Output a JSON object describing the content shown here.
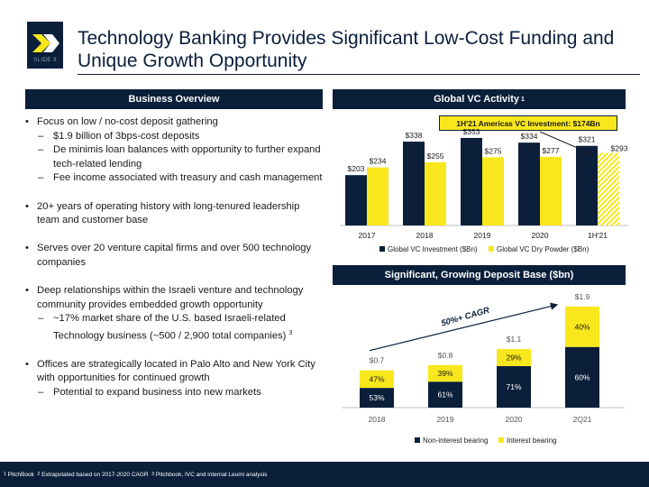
{
  "slide": {
    "number_label": "SLIDE 9",
    "title": "Technology Banking Provides Significant Low-Cost Funding and Unique Growth Opportunity"
  },
  "left": {
    "header": "Business Overview",
    "bullets": [
      {
        "level": 1,
        "text": "Focus on low / no-cost deposit gathering"
      },
      {
        "level": 2,
        "text": "$1.9 billion of 3bps-cost deposits"
      },
      {
        "level": 2,
        "text": "De minimis loan balances with opportunity to further expand tech-related lending"
      },
      {
        "level": 2,
        "text": "Fee income associated with treasury and cash management"
      },
      {
        "level": 0,
        "text": ""
      },
      {
        "level": 1,
        "text": "20+ years of operating history with long-tenured leadership team and customer base"
      },
      {
        "level": 0,
        "text": ""
      },
      {
        "level": 1,
        "text": "Serves over 20 venture capital firms and over 500 technology companies"
      },
      {
        "level": 0,
        "text": ""
      },
      {
        "level": 1,
        "text": "Deep relationships within the Israeli venture and technology community provides embedded growth opportunity"
      },
      {
        "level": 2,
        "text": "~17% market share of the U.S. based Israeli-related Technology business (~500 / 2,900 total companies)",
        "sup": "3"
      },
      {
        "level": 0,
        "text": ""
      },
      {
        "level": 1,
        "text": "Offices are strategically located in Palo Alto and New York City with opportunities for continued growth"
      },
      {
        "level": 2,
        "text": "Potential to expand business into new markets"
      }
    ]
  },
  "vc": {
    "header": "Global VC Activity",
    "header_sup": "1",
    "callout": "1H'21 Americas VC Investment: $174Bn",
    "colors": {
      "navy": "#0b1f3b",
      "yellow": "#f8e71c"
    }
  },
  "deposit": {
    "header": "Significant, Growing Deposit Base ($bn)",
    "cagr_label": "50%+ CAGR"
  },
  "chart_data": [
    {
      "type": "bar",
      "title": "Global VC Activity",
      "categories": [
        "2017",
        "2018",
        "2019",
        "2020",
        "1H'21"
      ],
      "series": [
        {
          "name": "Global VC Investment ($Bn)",
          "values": [
            203,
            338,
            353,
            334,
            321
          ],
          "labels": [
            "$203",
            "$338",
            "$353",
            "$334",
            "$321"
          ]
        },
        {
          "name": "Global VC Dry Powder ($Bn)",
          "values": [
            234,
            255,
            275,
            277,
            293
          ],
          "labels": [
            "$234",
            "$255",
            "$275",
            "$277",
            "$293"
          ],
          "last_label_sup": "2"
        }
      ],
      "ylim": [
        0,
        400
      ],
      "legend": "bottom"
    },
    {
      "type": "bar",
      "stacked": true,
      "title": "Significant, Growing Deposit Base ($bn)",
      "categories": [
        "2018",
        "2019",
        "2020",
        "2Q21"
      ],
      "totals": [
        0.7,
        0.8,
        1.1,
        1.9
      ],
      "total_labels": [
        "$0.7",
        "$0.8",
        "$1.1",
        "$1.9"
      ],
      "series": [
        {
          "name": "Non-interest bearing",
          "percent": [
            53,
            61,
            71,
            60
          ],
          "labels": [
            "53%",
            "61%",
            "71%",
            "60%"
          ]
        },
        {
          "name": "Interest bearing",
          "percent": [
            47,
            39,
            29,
            40
          ],
          "labels": [
            "47%",
            "39%",
            "29%",
            "40%"
          ]
        }
      ],
      "ylim": [
        0,
        2.0
      ],
      "legend": "bottom"
    }
  ],
  "footer": {
    "text": "PitchBook  Extrapolated based on 2017-2020 CAGR  Pitchbook, IVC and internal Leumi analysis",
    "parts": [
      {
        "sup": "1",
        "text": "PitchBook"
      },
      {
        "sup": "2",
        "text": "Extrapolated based on 2017-2020 CAGR"
      },
      {
        "sup": "3",
        "text": "Pitchbook, IVC and internal Leumi analysis"
      }
    ]
  }
}
